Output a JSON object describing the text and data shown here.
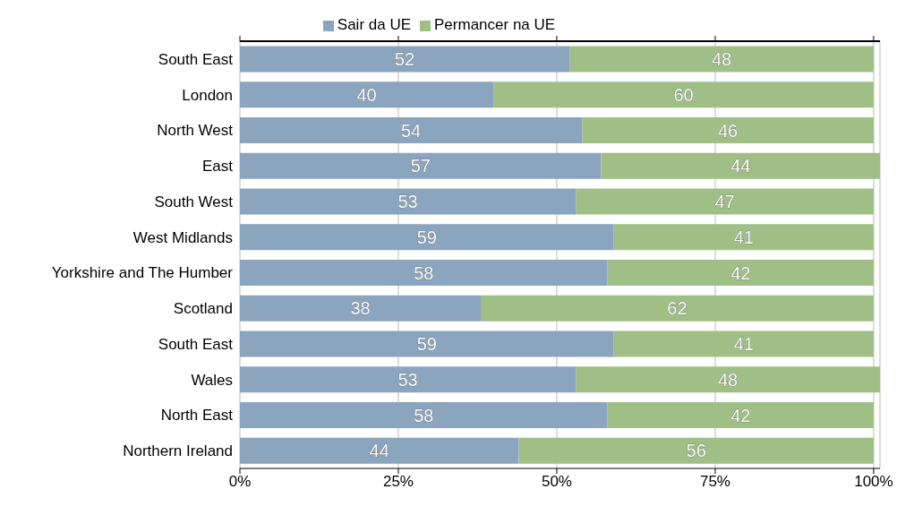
{
  "chart_data": {
    "type": "bar",
    "orientation": "horizontal",
    "stacked": true,
    "categories": [
      "South East",
      "London",
      "North West",
      "East",
      "South West",
      "West Midlands",
      "Yorkshire and The Humber",
      "Scotland",
      "South East",
      "Wales",
      "North East",
      "Northern Ireland"
    ],
    "series": [
      {
        "name": "Sair da UE",
        "color": "#8ca5bf",
        "values": [
          52,
          40,
          54,
          57,
          53,
          59,
          58,
          38,
          59,
          53,
          58,
          44
        ]
      },
      {
        "name": "Permancer na UE",
        "color": "#9fbf87",
        "values": [
          48,
          60,
          46,
          44,
          47,
          41,
          42,
          62,
          41,
          48,
          42,
          56
        ]
      }
    ],
    "xlim": [
      0,
      101
    ],
    "xticks": [
      {
        "value": 0,
        "label": "0%"
      },
      {
        "value": 25,
        "label": "25%"
      },
      {
        "value": 50,
        "label": "50%"
      },
      {
        "value": 75,
        "label": "75%"
      },
      {
        "value": 100,
        "label": "100%"
      }
    ],
    "grid": "x",
    "legend": "top",
    "data_labels": true
  }
}
